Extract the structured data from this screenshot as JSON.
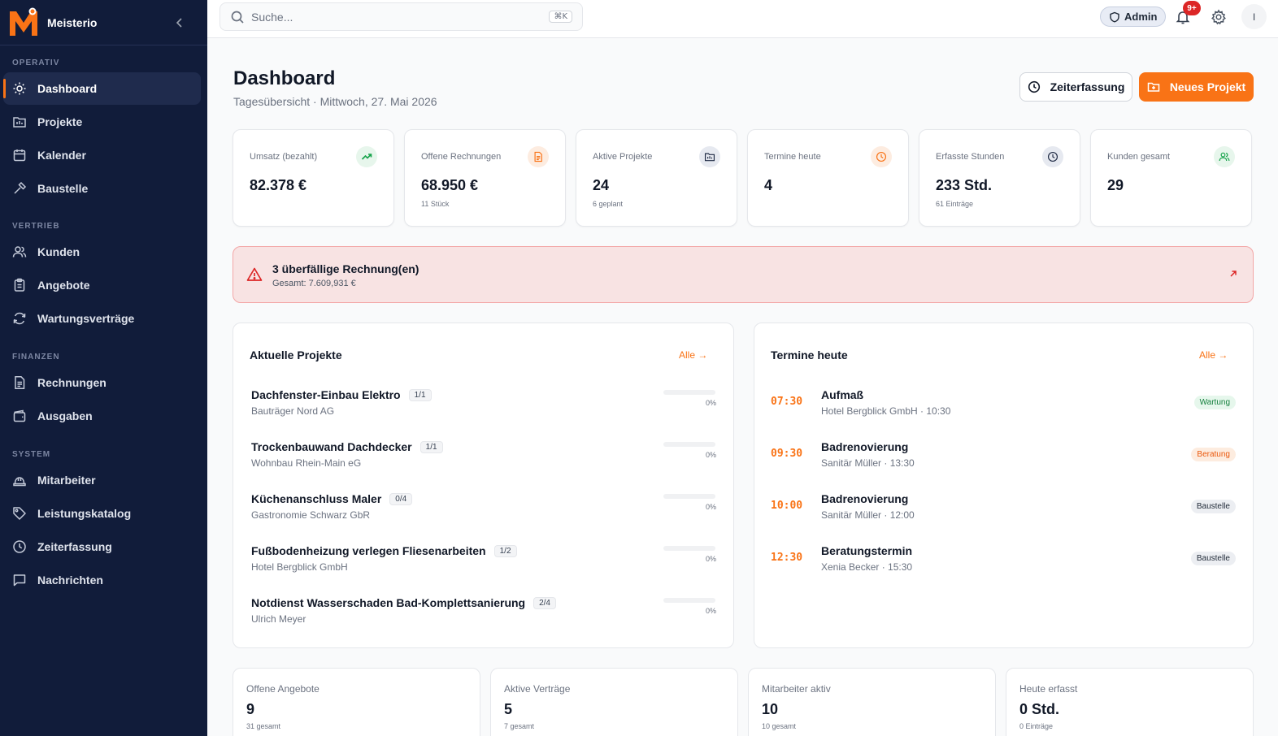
{
  "app": {
    "name": "Meisterio"
  },
  "sidebar": {
    "sections": [
      {
        "title": "OPERATIV",
        "items": [
          {
            "label": "Dashboard",
            "icon": "sun-icon",
            "active": true
          },
          {
            "label": "Projekte",
            "icon": "folder-icon"
          },
          {
            "label": "Kalender",
            "icon": "calendar-icon"
          },
          {
            "label": "Baustelle",
            "icon": "hammer-icon"
          }
        ]
      },
      {
        "title": "VERTRIEB",
        "items": [
          {
            "label": "Kunden",
            "icon": "users-icon"
          },
          {
            "label": "Angebote",
            "icon": "clipboard-icon"
          },
          {
            "label": "Wartungsverträge",
            "icon": "refresh-icon"
          }
        ]
      },
      {
        "title": "FINANZEN",
        "items": [
          {
            "label": "Rechnungen",
            "icon": "document-icon"
          },
          {
            "label": "Ausgaben",
            "icon": "wallet-icon"
          }
        ]
      },
      {
        "title": "SYSTEM",
        "items": [
          {
            "label": "Mitarbeiter",
            "icon": "hardhat-icon"
          },
          {
            "label": "Leistungskatalog",
            "icon": "tag-icon"
          },
          {
            "label": "Zeiterfassung",
            "icon": "clock-icon"
          },
          {
            "label": "Nachrichten",
            "icon": "message-icon"
          }
        ]
      }
    ]
  },
  "topbar": {
    "search_placeholder": "Suche...",
    "search_shortcut": "⌘K",
    "role_label": "Admin",
    "notification_count": "9+",
    "user_initial": "I"
  },
  "header": {
    "title": "Dashboard",
    "subtitle": "Tagesübersicht · Mittwoch, 27. Mai 2026",
    "time_button": "Zeiterfassung",
    "new_project_button": "Neues Projekt"
  },
  "stats": [
    {
      "label": "Umsatz (bezahlt)",
      "value": "82.378 €",
      "sub": "",
      "icon": "trend-up-icon",
      "icon_bg": "#e7f6ec",
      "icon_color": "#16a34a"
    },
    {
      "label": "Offene Rechnungen",
      "value": "68.950 €",
      "sub": "11 Stück",
      "icon": "document-icon",
      "icon_bg": "#fdece0",
      "icon_color": "#f97316"
    },
    {
      "label": "Aktive Projekte",
      "value": "24",
      "sub": "6 geplant",
      "icon": "folder-icon",
      "icon_bg": "#e6e9f0",
      "icon_color": "#1f2a44"
    },
    {
      "label": "Termine heute",
      "value": "4",
      "sub": "",
      "icon": "clock-icon",
      "icon_bg": "#fdece0",
      "icon_color": "#f97316"
    },
    {
      "label": "Erfasste Stunden",
      "value": "233 Std.",
      "sub": "61 Einträge",
      "icon": "clock-icon",
      "icon_bg": "#e6e9f0",
      "icon_color": "#1f2a44"
    },
    {
      "label": "Kunden gesamt",
      "value": "29",
      "sub": "",
      "icon": "users-icon",
      "icon_bg": "#e7f6ec",
      "icon_color": "#16a34a"
    }
  ],
  "alert": {
    "title": "3 überfällige Rechnung(en)",
    "subtitle": "Gesamt: 7.609,931 €"
  },
  "projects_panel": {
    "title": "Aktuelle Projekte",
    "link": "Alle →",
    "items": [
      {
        "name": "Dachfenster-Einbau Elektro",
        "count": "1/1",
        "customer": "Bauträger Nord AG",
        "progress": 0,
        "progress_label": "0%"
      },
      {
        "name": "Trockenbauwand Dachdecker",
        "count": "1/1",
        "customer": "Wohnbau Rhein-Main eG",
        "progress": 0,
        "progress_label": "0%"
      },
      {
        "name": "Küchenanschluss Maler",
        "count": "0/4",
        "customer": "Gastronomie Schwarz GbR",
        "progress": 0,
        "progress_label": "0%"
      },
      {
        "name": "Fußbodenheizung verlegen Fliesenarbeiten",
        "count": "1/2",
        "customer": "Hotel Bergblick GmbH",
        "progress": 0,
        "progress_label": "0%"
      },
      {
        "name": "Notdienst Wasserschaden Bad-Komplettsanierung",
        "count": "2/4",
        "customer": "Ulrich Meyer",
        "progress": 0,
        "progress_label": "0%"
      }
    ]
  },
  "appointments_panel": {
    "title": "Termine heute",
    "link": "Alle →",
    "items": [
      {
        "time": "07:30",
        "title": "Aufmaß",
        "sub": "Hotel Bergblick GmbH · 10:30",
        "tag": "Wartung",
        "tag_bg": "#e6f7ec",
        "tag_color": "#15803d"
      },
      {
        "time": "09:30",
        "title": "Badrenovierung",
        "sub": "Sanitär Müller · 13:30",
        "tag": "Beratung",
        "tag_bg": "#fdecdf",
        "tag_color": "#ea580c"
      },
      {
        "time": "10:00",
        "title": "Badrenovierung",
        "sub": "Sanitär Müller · 12:00",
        "tag": "Baustelle",
        "tag_bg": "#eceef2",
        "tag_color": "#1f2937"
      },
      {
        "time": "12:30",
        "title": "Beratungstermin",
        "sub": "Xenia Becker · 15:30",
        "tag": "Baustelle",
        "tag_bg": "#eceef2",
        "tag_color": "#1f2937"
      }
    ]
  },
  "summary": [
    {
      "label": "Offene Angebote",
      "value": "9",
      "sub": "31 gesamt"
    },
    {
      "label": "Aktive Verträge",
      "value": "5",
      "sub": "7 gesamt"
    },
    {
      "label": "Mitarbeiter aktiv",
      "value": "10",
      "sub": "10 gesamt"
    },
    {
      "label": "Heute erfasst",
      "value": "0 Std.",
      "sub": "0 Einträge"
    }
  ],
  "colors": {
    "accent": "#f97316",
    "sidebar_bg": "#111c3a",
    "danger": "#dc2626"
  }
}
